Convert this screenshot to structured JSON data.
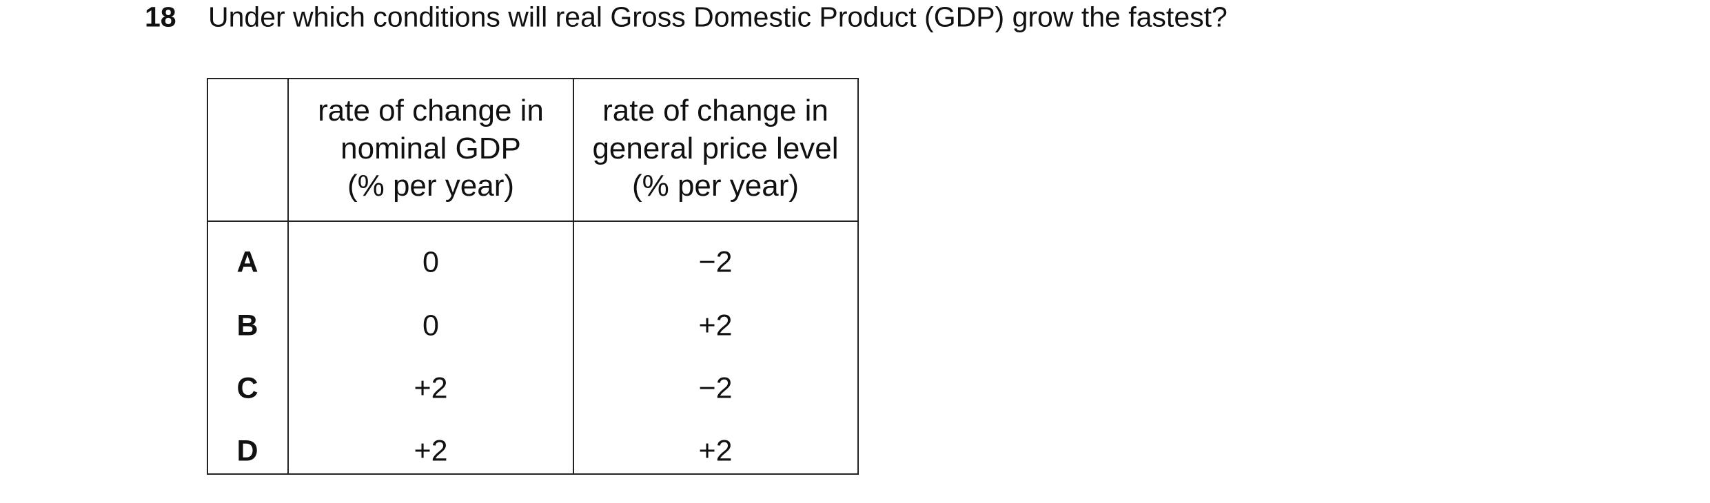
{
  "question": {
    "number": "18",
    "text": "Under which conditions will real Gross Domestic Product (GDP) grow the fastest?"
  },
  "table": {
    "header": [
      [
        "rate of change in",
        "nominal GDP",
        "(% per year)"
      ],
      [
        "rate of change in",
        "general price level",
        "(% per year)"
      ]
    ],
    "rows": [
      {
        "label": "A",
        "values": [
          "0",
          "−2"
        ]
      },
      {
        "label": "B",
        "values": [
          "0",
          "+2"
        ]
      },
      {
        "label": "C",
        "values": [
          "+2",
          "−2"
        ]
      },
      {
        "label": "D",
        "values": [
          "+2",
          "+2"
        ]
      }
    ]
  }
}
